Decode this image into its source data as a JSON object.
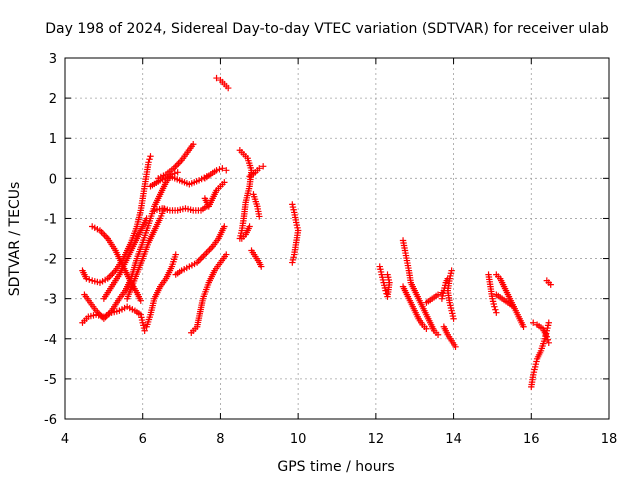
{
  "chart_data": {
    "type": "scatter",
    "title": "Day 198 of 2024, Sidereal Day-to-day VTEC variation (SDTVAR) for receiver ulab",
    "xlabel": "GPS time / hours",
    "ylabel": "SDTVAR / TECUs",
    "xlim": [
      4,
      18
    ],
    "ylim": [
      -6,
      3
    ],
    "xticks": [
      "4",
      "6",
      "8",
      "10",
      "12",
      "14",
      "16",
      "18"
    ],
    "yticks": [
      "-6",
      "-5",
      "-4",
      "-3",
      "-2",
      "-1",
      "0",
      "1",
      "2",
      "3"
    ],
    "grid": true,
    "marker": "+",
    "color": "#ff0000",
    "series": [
      {
        "name": "s1",
        "points": [
          [
            4.45,
            -3.6
          ],
          [
            4.6,
            -3.45
          ],
          [
            4.8,
            -3.4
          ],
          [
            5.0,
            -3.45
          ],
          [
            5.2,
            -3.35
          ],
          [
            5.4,
            -3.3
          ],
          [
            5.6,
            -3.2
          ],
          [
            5.8,
            -3.3
          ],
          [
            5.95,
            -3.4
          ],
          [
            6.0,
            -3.6
          ],
          [
            6.05,
            -3.8
          ]
        ]
      },
      {
        "name": "s2",
        "points": [
          [
            4.45,
            -2.3
          ],
          [
            4.55,
            -2.5
          ],
          [
            4.7,
            -2.55
          ],
          [
            4.9,
            -2.6
          ],
          [
            5.1,
            -2.5
          ],
          [
            5.3,
            -2.3
          ],
          [
            5.5,
            -2.0
          ],
          [
            5.7,
            -1.6
          ],
          [
            5.85,
            -1.2
          ],
          [
            5.95,
            -0.8
          ],
          [
            6.0,
            -0.5
          ],
          [
            6.05,
            -0.2
          ],
          [
            6.1,
            0.1
          ],
          [
            6.15,
            0.4
          ],
          [
            6.2,
            0.55
          ]
        ]
      },
      {
        "name": "s3",
        "points": [
          [
            4.5,
            -2.9
          ],
          [
            4.65,
            -3.1
          ],
          [
            4.8,
            -3.3
          ],
          [
            5.0,
            -3.5
          ],
          [
            5.2,
            -3.3
          ],
          [
            5.4,
            -3.0
          ],
          [
            5.55,
            -2.8
          ],
          [
            5.7,
            -2.5
          ],
          [
            5.85,
            -2.0
          ],
          [
            6.0,
            -1.6
          ],
          [
            6.1,
            -1.3
          ],
          [
            6.2,
            -1.0
          ],
          [
            6.3,
            -0.7
          ],
          [
            6.45,
            -0.4
          ],
          [
            6.6,
            -0.1
          ],
          [
            6.75,
            0.1
          ],
          [
            6.9,
            0.15
          ]
        ]
      },
      {
        "name": "s4",
        "points": [
          [
            4.7,
            -1.2
          ],
          [
            4.9,
            -1.3
          ],
          [
            5.1,
            -1.5
          ],
          [
            5.3,
            -1.8
          ],
          [
            5.5,
            -2.2
          ],
          [
            5.7,
            -2.6
          ],
          [
            5.85,
            -2.85
          ],
          [
            5.95,
            -3.05
          ]
        ]
      },
      {
        "name": "s5",
        "points": [
          [
            5.0,
            -3.0
          ],
          [
            5.2,
            -2.7
          ],
          [
            5.4,
            -2.4
          ],
          [
            5.55,
            -2.1
          ],
          [
            5.7,
            -1.8
          ],
          [
            5.85,
            -1.5
          ],
          [
            6.0,
            -1.2
          ],
          [
            6.1,
            -1.0
          ]
        ]
      },
      {
        "name": "s6",
        "points": [
          [
            5.6,
            -3.0
          ],
          [
            5.8,
            -2.5
          ],
          [
            6.0,
            -2.0
          ],
          [
            6.15,
            -1.6
          ],
          [
            6.3,
            -1.3
          ],
          [
            6.45,
            -1.0
          ],
          [
            6.55,
            -0.75
          ]
        ]
      },
      {
        "name": "s7",
        "points": [
          [
            6.3,
            -0.8
          ],
          [
            6.5,
            -0.75
          ],
          [
            6.7,
            -0.8
          ],
          [
            6.9,
            -0.8
          ],
          [
            7.1,
            -0.75
          ],
          [
            7.3,
            -0.8
          ],
          [
            7.5,
            -0.8
          ],
          [
            7.65,
            -0.7
          ]
        ]
      },
      {
        "name": "s8",
        "points": [
          [
            6.1,
            -3.7
          ],
          [
            6.2,
            -3.4
          ],
          [
            6.3,
            -3.0
          ],
          [
            6.45,
            -2.7
          ],
          [
            6.6,
            -2.5
          ],
          [
            6.75,
            -2.2
          ],
          [
            6.85,
            -1.9
          ]
        ]
      },
      {
        "name": "s9",
        "points": [
          [
            6.4,
            0.0
          ],
          [
            6.6,
            0.1
          ],
          [
            6.8,
            0.25
          ],
          [
            7.0,
            0.45
          ],
          [
            7.15,
            0.65
          ],
          [
            7.3,
            0.85
          ]
        ]
      },
      {
        "name": "s10",
        "points": [
          [
            6.2,
            -0.2
          ],
          [
            6.45,
            -0.05
          ],
          [
            6.7,
            0.05
          ],
          [
            6.95,
            -0.05
          ],
          [
            7.2,
            -0.15
          ],
          [
            7.45,
            -0.05
          ],
          [
            7.65,
            0.05
          ]
        ]
      },
      {
        "name": "s11",
        "points": [
          [
            6.85,
            -2.4
          ],
          [
            7.0,
            -2.3
          ],
          [
            7.2,
            -2.2
          ],
          [
            7.4,
            -2.1
          ],
          [
            7.6,
            -1.9
          ],
          [
            7.8,
            -1.7
          ],
          [
            7.95,
            -1.5
          ],
          [
            8.1,
            -1.2
          ]
        ]
      },
      {
        "name": "s12",
        "points": [
          [
            7.6,
            -0.5
          ],
          [
            7.7,
            -0.7
          ],
          [
            7.8,
            -0.5
          ],
          [
            7.9,
            -0.3
          ],
          [
            8.0,
            -0.2
          ],
          [
            8.1,
            -0.1
          ]
        ]
      },
      {
        "name": "s13",
        "points": [
          [
            7.25,
            -3.85
          ],
          [
            7.4,
            -3.7
          ],
          [
            7.55,
            -3.0
          ],
          [
            7.7,
            -2.6
          ],
          [
            7.85,
            -2.3
          ],
          [
            8.0,
            -2.1
          ],
          [
            8.15,
            -1.9
          ]
        ]
      },
      {
        "name": "s14",
        "points": [
          [
            7.6,
            0.0
          ],
          [
            7.75,
            0.1
          ],
          [
            7.9,
            0.2
          ],
          [
            8.05,
            0.25
          ],
          [
            8.15,
            0.2
          ]
        ]
      },
      {
        "name": "s15",
        "points": [
          [
            7.9,
            2.5
          ],
          [
            8.0,
            2.45
          ],
          [
            8.1,
            2.35
          ],
          [
            8.2,
            2.25
          ]
        ]
      },
      {
        "name": "s16",
        "points": [
          [
            8.5,
            0.7
          ],
          [
            8.6,
            0.6
          ],
          [
            8.7,
            0.5
          ],
          [
            8.8,
            0.2
          ],
          [
            8.75,
            -0.2
          ],
          [
            8.65,
            -0.6
          ],
          [
            8.6,
            -1.0
          ],
          [
            8.55,
            -1.3
          ],
          [
            8.5,
            -1.5
          ]
        ]
      },
      {
        "name": "s17",
        "points": [
          [
            8.55,
            -1.5
          ],
          [
            8.65,
            -1.4
          ],
          [
            8.75,
            -1.2
          ]
        ]
      },
      {
        "name": "s18",
        "points": [
          [
            8.8,
            -1.8
          ],
          [
            8.9,
            -1.95
          ],
          [
            9.0,
            -2.1
          ],
          [
            9.05,
            -2.2
          ]
        ]
      },
      {
        "name": "s19",
        "points": [
          [
            8.75,
            0.05
          ],
          [
            8.9,
            0.15
          ],
          [
            9.0,
            0.25
          ],
          [
            9.1,
            0.3
          ]
        ]
      },
      {
        "name": "s20",
        "points": [
          [
            8.85,
            -0.4
          ],
          [
            8.95,
            -0.7
          ],
          [
            9.0,
            -0.95
          ]
        ]
      },
      {
        "name": "s21",
        "points": [
          [
            9.85,
            -0.65
          ],
          [
            9.9,
            -0.85
          ],
          [
            9.95,
            -1.1
          ],
          [
            10.0,
            -1.3
          ],
          [
            9.95,
            -1.6
          ],
          [
            9.9,
            -1.9
          ],
          [
            9.85,
            -2.1
          ]
        ]
      },
      {
        "name": "s22",
        "points": [
          [
            12.1,
            -2.2
          ],
          [
            12.15,
            -2.4
          ],
          [
            12.2,
            -2.6
          ],
          [
            12.25,
            -2.8
          ],
          [
            12.3,
            -2.95
          ],
          [
            12.35,
            -2.6
          ],
          [
            12.3,
            -2.4
          ]
        ]
      },
      {
        "name": "s23",
        "points": [
          [
            12.7,
            -1.55
          ],
          [
            12.75,
            -1.8
          ],
          [
            12.8,
            -2.05
          ],
          [
            12.85,
            -2.3
          ],
          [
            12.9,
            -2.6
          ],
          [
            13.0,
            -2.8
          ],
          [
            13.1,
            -3.0
          ],
          [
            13.2,
            -3.2
          ],
          [
            13.3,
            -3.4
          ],
          [
            13.4,
            -3.6
          ],
          [
            13.5,
            -3.8
          ],
          [
            13.6,
            -3.9
          ]
        ]
      },
      {
        "name": "s24",
        "points": [
          [
            12.7,
            -2.7
          ],
          [
            12.8,
            -2.9
          ],
          [
            12.9,
            -3.1
          ],
          [
            13.0,
            -3.3
          ],
          [
            13.1,
            -3.5
          ],
          [
            13.2,
            -3.65
          ],
          [
            13.3,
            -3.75
          ]
        ]
      },
      {
        "name": "s25",
        "points": [
          [
            13.3,
            -3.1
          ],
          [
            13.45,
            -3.0
          ],
          [
            13.6,
            -2.9
          ],
          [
            13.7,
            -2.85
          ]
        ]
      },
      {
        "name": "s26",
        "points": [
          [
            13.7,
            -3.0
          ],
          [
            13.75,
            -2.8
          ],
          [
            13.8,
            -2.6
          ],
          [
            13.85,
            -2.5
          ]
        ]
      },
      {
        "name": "s27",
        "points": [
          [
            13.75,
            -3.7
          ],
          [
            13.85,
            -3.9
          ],
          [
            13.95,
            -4.05
          ],
          [
            14.05,
            -4.2
          ]
        ]
      },
      {
        "name": "s28",
        "points": [
          [
            13.95,
            -2.3
          ],
          [
            13.9,
            -2.5
          ],
          [
            13.85,
            -2.8
          ],
          [
            13.9,
            -3.1
          ],
          [
            13.95,
            -3.3
          ],
          [
            14.0,
            -3.5
          ]
        ]
      },
      {
        "name": "s29",
        "points": [
          [
            14.9,
            -2.4
          ],
          [
            14.95,
            -2.7
          ],
          [
            15.0,
            -3.0
          ],
          [
            15.05,
            -3.2
          ],
          [
            15.1,
            -3.35
          ]
        ]
      },
      {
        "name": "s30",
        "points": [
          [
            15.1,
            -2.4
          ],
          [
            15.2,
            -2.5
          ],
          [
            15.3,
            -2.7
          ],
          [
            15.4,
            -2.9
          ],
          [
            15.5,
            -3.1
          ],
          [
            15.6,
            -3.3
          ],
          [
            15.7,
            -3.5
          ],
          [
            15.8,
            -3.7
          ]
        ]
      },
      {
        "name": "s31",
        "points": [
          [
            15.1,
            -2.9
          ],
          [
            15.25,
            -3.0
          ],
          [
            15.4,
            -3.1
          ],
          [
            15.55,
            -3.2
          ]
        ]
      },
      {
        "name": "s32",
        "points": [
          [
            16.0,
            -5.2
          ],
          [
            16.05,
            -4.9
          ],
          [
            16.1,
            -4.7
          ],
          [
            16.15,
            -4.5
          ],
          [
            16.25,
            -4.3
          ],
          [
            16.35,
            -4.0
          ],
          [
            16.4,
            -3.8
          ],
          [
            16.45,
            -3.6
          ]
        ]
      },
      {
        "name": "s33",
        "points": [
          [
            16.05,
            -3.6
          ],
          [
            16.15,
            -3.65
          ],
          [
            16.3,
            -3.75
          ],
          [
            16.4,
            -3.95
          ],
          [
            16.45,
            -4.1
          ]
        ]
      },
      {
        "name": "s34",
        "points": [
          [
            16.4,
            -2.55
          ],
          [
            16.45,
            -2.6
          ],
          [
            16.5,
            -2.65
          ]
        ]
      }
    ]
  }
}
